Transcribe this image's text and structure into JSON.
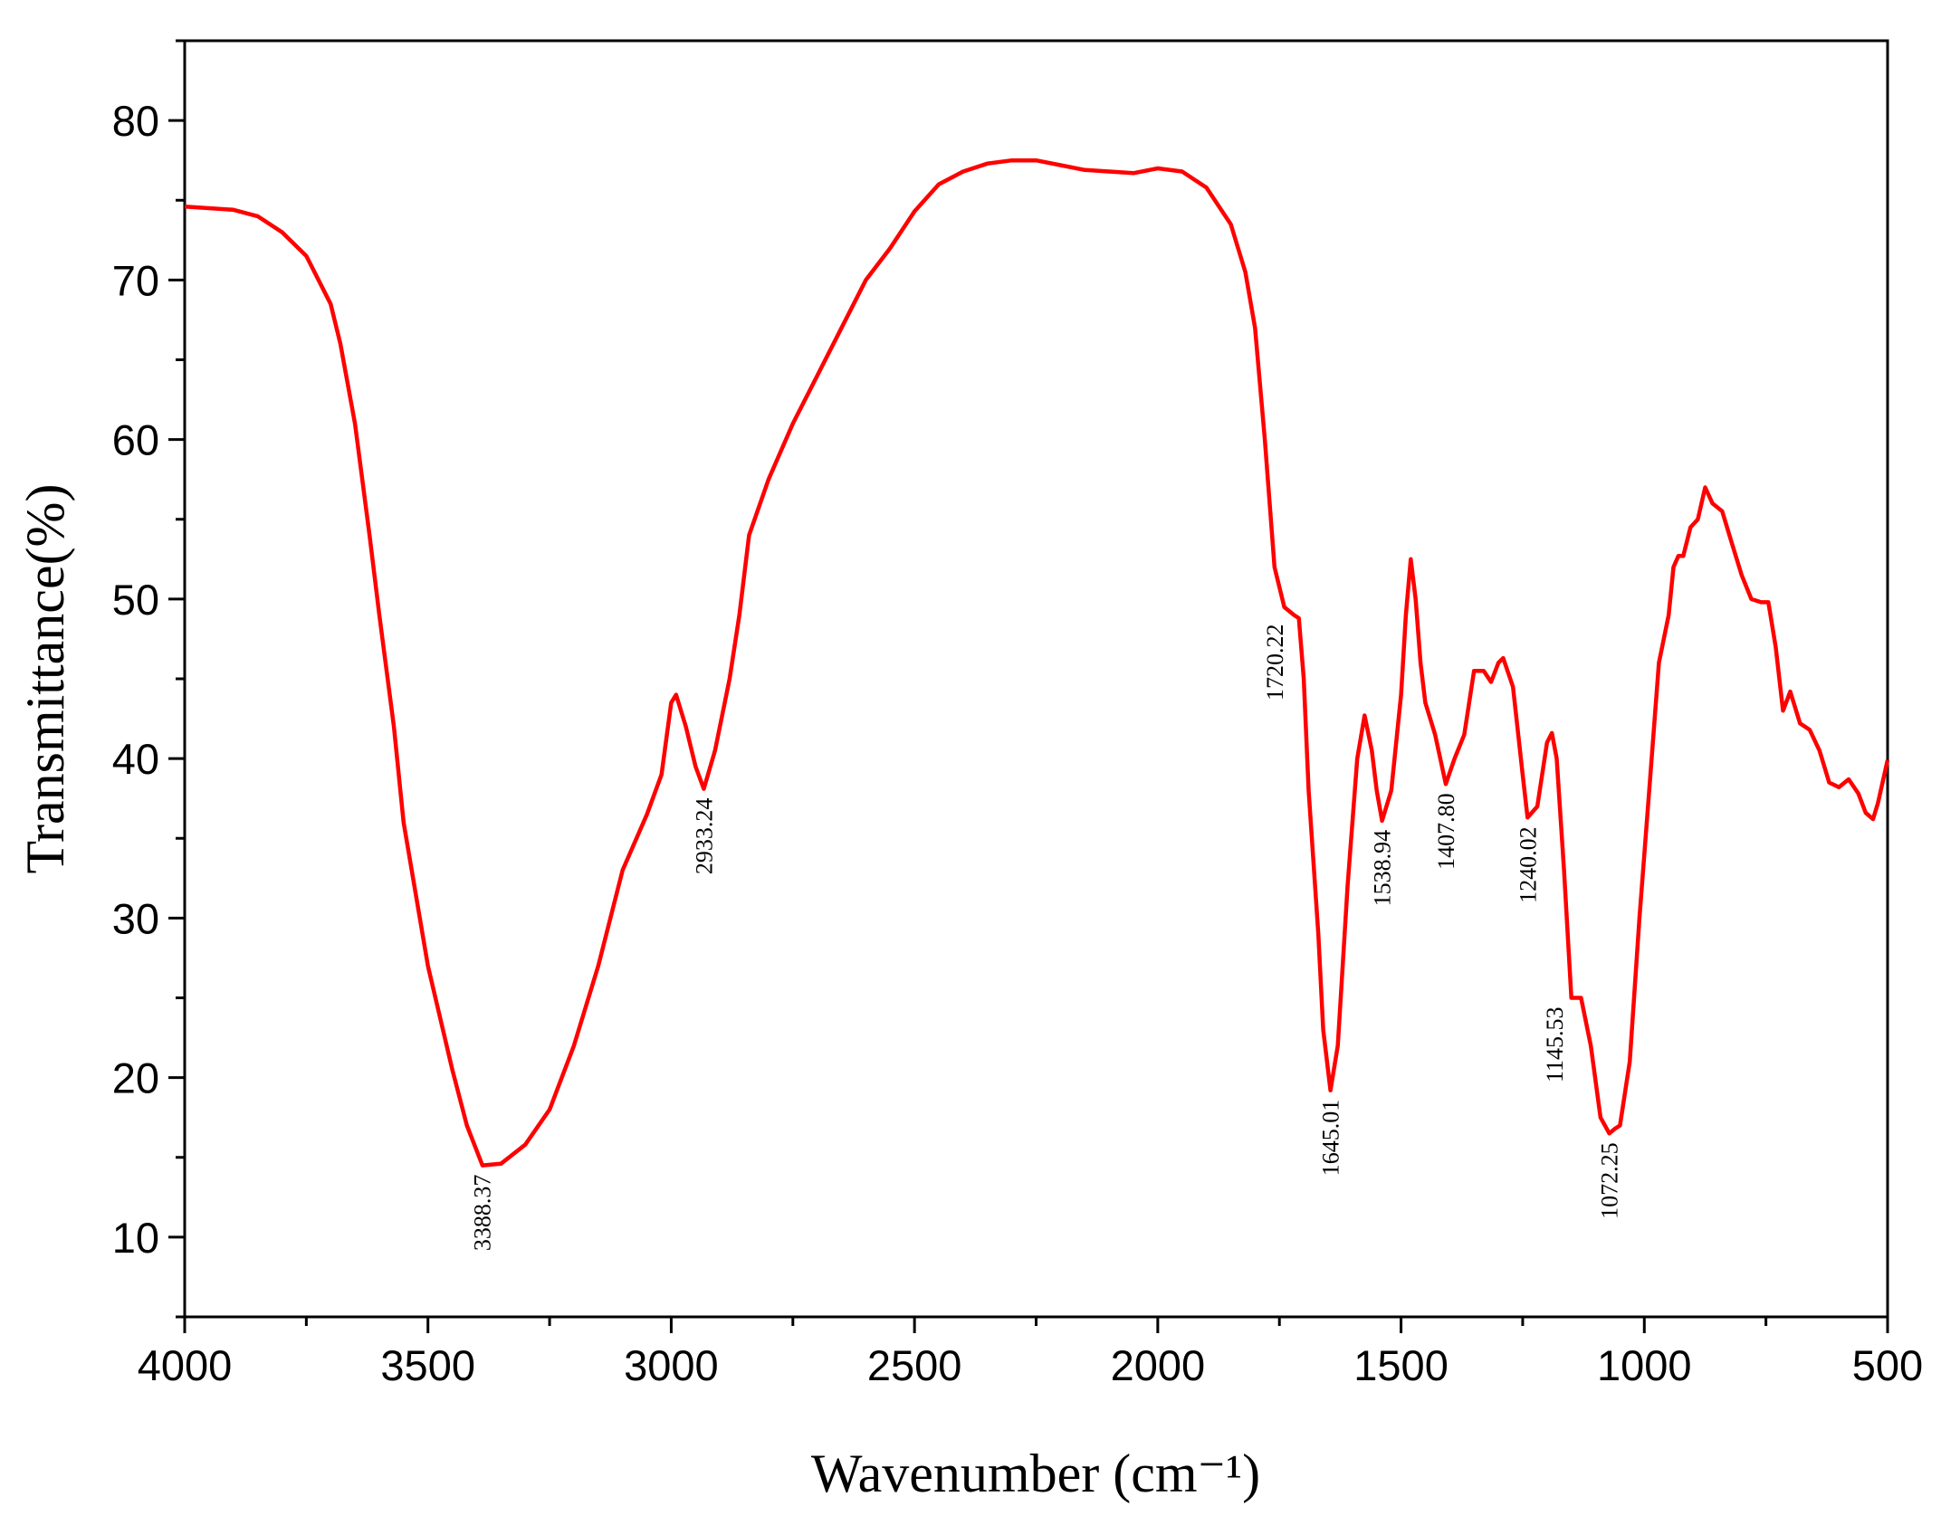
{
  "chart_data": {
    "type": "line",
    "xlabel": "Wavenumber (cm⁻¹)",
    "ylabel": "Transmittance(%)",
    "xlim": [
      4000,
      500
    ],
    "ylim": [
      5,
      85
    ],
    "xticks": [
      4000,
      3500,
      3000,
      2500,
      2000,
      1500,
      1000,
      500
    ],
    "xminorticks": [
      3750,
      3250,
      2750,
      2250,
      1750,
      1250,
      750
    ],
    "yticks": [
      10,
      20,
      30,
      40,
      50,
      60,
      70,
      80
    ],
    "yminorticks": [
      5,
      15,
      25,
      35,
      45,
      55,
      65,
      75,
      85
    ],
    "series": [
      {
        "color": "#ff0000",
        "x": [
          4000,
          3900,
          3850,
          3800,
          3750,
          3700,
          3680,
          3650,
          3620,
          3600,
          3570,
          3550,
          3500,
          3450,
          3420,
          3388,
          3350,
          3300,
          3250,
          3200,
          3150,
          3100,
          3050,
          3020,
          3000,
          2990,
          2970,
          2950,
          2933,
          2910,
          2880,
          2860,
          2840,
          2800,
          2750,
          2700,
          2650,
          2600,
          2550,
          2500,
          2450,
          2400,
          2350,
          2300,
          2250,
          2200,
          2150,
          2100,
          2050,
          2000,
          1950,
          1900,
          1850,
          1820,
          1800,
          1780,
          1760,
          1740,
          1720,
          1710,
          1700,
          1690,
          1670,
          1660,
          1645,
          1630,
          1610,
          1590,
          1575,
          1560,
          1550,
          1539,
          1520,
          1500,
          1490,
          1480,
          1470,
          1460,
          1450,
          1430,
          1408,
          1390,
          1370,
          1350,
          1330,
          1315,
          1300,
          1290,
          1270,
          1250,
          1240,
          1220,
          1200,
          1190,
          1180,
          1165,
          1150,
          1145,
          1130,
          1110,
          1090,
          1072,
          1060,
          1050,
          1030,
          1010,
          990,
          970,
          950,
          940,
          930,
          920,
          905,
          890,
          875,
          860,
          840,
          820,
          800,
          780,
          760,
          745,
          730,
          715,
          700,
          680,
          660,
          640,
          620,
          600,
          580,
          560,
          545,
          530,
          520,
          500
        ],
        "values": [
          74.6,
          74.4,
          74.0,
          73.0,
          71.5,
          68.5,
          66,
          61,
          54,
          49,
          42,
          36,
          27,
          20.5,
          17,
          14.5,
          14.6,
          15.8,
          18,
          22,
          27,
          33,
          36.5,
          39,
          43.5,
          44,
          42,
          39.5,
          38.1,
          40.5,
          45,
          49,
          54,
          57.5,
          61,
          64,
          67,
          70,
          72,
          74.3,
          76,
          76.8,
          77.3,
          77.5,
          77.5,
          77.2,
          76.9,
          76.8,
          76.7,
          77.0,
          76.8,
          75.8,
          73.5,
          70.5,
          67,
          60,
          52,
          49.5,
          49,
          48.8,
          45,
          38,
          29,
          23,
          19.2,
          22,
          32,
          40,
          42.7,
          40.5,
          38,
          36.1,
          38,
          44,
          49,
          52.5,
          50,
          46,
          43.5,
          41.5,
          38.4,
          40,
          41.5,
          45.5,
          45.5,
          44.8,
          46,
          46.3,
          44.5,
          39,
          36.3,
          37,
          41,
          41.6,
          40,
          33,
          25,
          25,
          25,
          22,
          17.5,
          16.5,
          16.8,
          17,
          21,
          30,
          38,
          46,
          49,
          52,
          52.7,
          52.7,
          54.5,
          55,
          57,
          56,
          55.5,
          53.5,
          51.5,
          50,
          49.8,
          49.8,
          47,
          43,
          44.2,
          42.2,
          41.8,
          40.5,
          38.5,
          38.2,
          38.7,
          37.8,
          36.6,
          36.2,
          37.2,
          39.9
        ]
      }
    ],
    "annotations": [
      {
        "text": "3388.37",
        "x": 3388.37,
        "y": 14.5,
        "position": "below"
      },
      {
        "text": "2933.24",
        "x": 2933.24,
        "y": 38.1,
        "position": "below"
      },
      {
        "text": "1720.22",
        "x": 1720.22,
        "y": 49,
        "position": "left"
      },
      {
        "text": "1645.01",
        "x": 1645.01,
        "y": 19.2,
        "position": "below"
      },
      {
        "text": "1538.94",
        "x": 1538.94,
        "y": 36.1,
        "position": "below"
      },
      {
        "text": "1407.80",
        "x": 1407.8,
        "y": 38.4,
        "position": "below"
      },
      {
        "text": "1240.02",
        "x": 1240.02,
        "y": 36.3,
        "position": "below"
      },
      {
        "text": "1145.53",
        "x": 1145.53,
        "y": 25,
        "position": "left"
      },
      {
        "text": "1072.25",
        "x": 1072.25,
        "y": 16.5,
        "position": "below"
      }
    ]
  }
}
